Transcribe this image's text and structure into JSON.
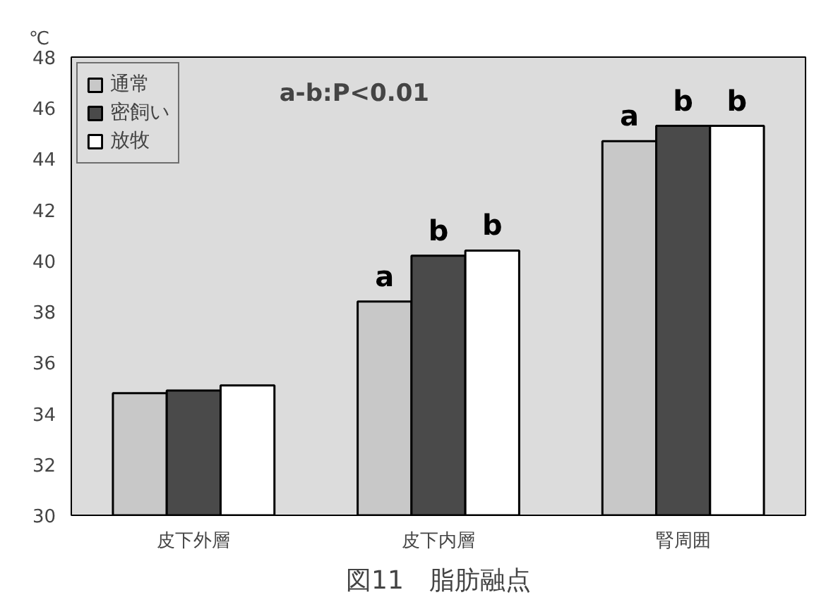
{
  "chart_data": {
    "type": "bar",
    "title": "図11　脂肪融点",
    "ylabel": "℃",
    "annotations": [
      "a-b:P<0.01"
    ],
    "categories": [
      "皮下外層",
      "皮下内層",
      "腎周囲"
    ],
    "series": [
      {
        "name": "通常",
        "color": "#c8c8c8",
        "values": [
          34.8,
          38.4,
          44.7
        ],
        "value_labels": [
          null,
          "a",
          "a"
        ]
      },
      {
        "name": "密飼い",
        "color": "#4a4a4a",
        "values": [
          34.9,
          40.2,
          45.3
        ],
        "value_labels": [
          null,
          "b",
          "b"
        ]
      },
      {
        "name": "放牧",
        "color": "#ffffff",
        "values": [
          35.1,
          40.4,
          45.3
        ],
        "value_labels": [
          null,
          "b",
          "b"
        ]
      }
    ],
    "ylim": [
      30,
      48
    ],
    "yticks": [
      30,
      32,
      34,
      36,
      38,
      40,
      42,
      44,
      46,
      48
    ],
    "grid": false,
    "legend": "top left"
  }
}
